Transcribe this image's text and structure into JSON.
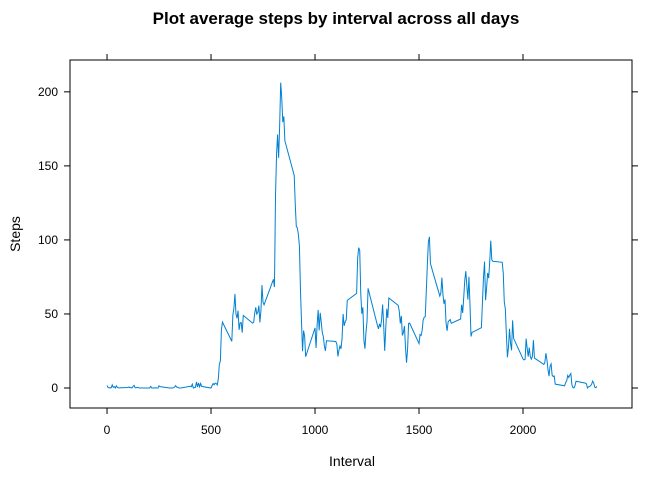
{
  "chart_data": {
    "type": "line",
    "title": "Plot average steps by interval across all days",
    "xlabel": "Interval",
    "ylabel": "Steps",
    "xlim": [
      -178,
      2524
    ],
    "ylim": [
      -13.5,
      221.5
    ],
    "xticks": [
      0,
      500,
      1000,
      1500,
      2000
    ],
    "yticks": [
      0,
      50,
      100,
      150,
      200
    ],
    "series": [
      {
        "color": "#0080d0",
        "x": [
          0,
          5,
          10,
          15,
          20,
          25,
          30,
          35,
          40,
          45,
          50,
          55,
          100,
          105,
          110,
          115,
          120,
          125,
          130,
          135,
          140,
          145,
          150,
          155,
          200,
          205,
          210,
          215,
          220,
          225,
          230,
          235,
          240,
          245,
          250,
          255,
          300,
          305,
          310,
          315,
          320,
          325,
          330,
          335,
          340,
          345,
          350,
          355,
          400,
          405,
          410,
          415,
          420,
          425,
          430,
          435,
          440,
          445,
          450,
          455,
          500,
          505,
          510,
          515,
          520,
          525,
          530,
          535,
          540,
          545,
          550,
          555,
          600,
          605,
          610,
          615,
          620,
          625,
          630,
          635,
          640,
          645,
          650,
          655,
          700,
          705,
          710,
          715,
          720,
          725,
          730,
          735,
          740,
          745,
          750,
          755,
          800,
          805,
          810,
          815,
          820,
          825,
          830,
          835,
          840,
          845,
          850,
          855,
          900,
          905,
          910,
          915,
          920,
          925,
          930,
          935,
          940,
          945,
          950,
          955,
          1000,
          1005,
          1010,
          1015,
          1020,
          1025,
          1030,
          1035,
          1040,
          1045,
          1050,
          1055,
          1100,
          1105,
          1110,
          1115,
          1120,
          1125,
          1130,
          1135,
          1140,
          1145,
          1150,
          1155,
          1200,
          1205,
          1210,
          1215,
          1220,
          1225,
          1230,
          1235,
          1240,
          1245,
          1250,
          1255,
          1300,
          1305,
          1310,
          1315,
          1320,
          1325,
          1330,
          1335,
          1340,
          1345,
          1350,
          1355,
          1400,
          1405,
          1410,
          1415,
          1420,
          1425,
          1430,
          1435,
          1440,
          1445,
          1450,
          1455,
          1500,
          1505,
          1510,
          1515,
          1520,
          1525,
          1530,
          1535,
          1540,
          1545,
          1550,
          1555,
          1600,
          1605,
          1610,
          1615,
          1620,
          1625,
          1630,
          1635,
          1640,
          1645,
          1650,
          1655,
          1700,
          1705,
          1710,
          1715,
          1720,
          1725,
          1730,
          1735,
          1740,
          1745,
          1750,
          1755,
          1800,
          1805,
          1810,
          1815,
          1820,
          1825,
          1830,
          1835,
          1840,
          1845,
          1850,
          1855,
          1900,
          1905,
          1910,
          1915,
          1920,
          1925,
          1930,
          1935,
          1940,
          1945,
          1950,
          1955,
          2000,
          2005,
          2010,
          2015,
          2020,
          2025,
          2030,
          2035,
          2040,
          2045,
          2050,
          2055,
          2100,
          2105,
          2110,
          2115,
          2120,
          2125,
          2130,
          2135,
          2140,
          2145,
          2150,
          2155,
          2200,
          2205,
          2210,
          2215,
          2220,
          2225,
          2230,
          2235,
          2240,
          2245,
          2250,
          2255,
          2300,
          2305,
          2310,
          2315,
          2320,
          2325,
          2330,
          2335,
          2340,
          2345,
          2350,
          2355
        ],
        "values": [
          1.7,
          0.3,
          0.1,
          0.2,
          0.1,
          2.1,
          0.5,
          0.9,
          0,
          1.5,
          0.3,
          0.1,
          0.3,
          0.7,
          0.2,
          0.3,
          0,
          1.1,
          1.8,
          0.2,
          0.2,
          0.4,
          0.3,
          0,
          0,
          0,
          1.1,
          0,
          0,
          0.1,
          0,
          0.2,
          0,
          0,
          1.5,
          0.9,
          0,
          0,
          0,
          0,
          0.2,
          0.6,
          1.6,
          0.6,
          0.5,
          0.1,
          0,
          0,
          1.2,
          0.9,
          2.6,
          0,
          0.3,
          0.4,
          4.1,
          0.7,
          3.5,
          0.8,
          3.1,
          1.1,
          0,
          1.6,
          3,
          2.2,
          3.3,
          3,
          2.1,
          6.1,
          16,
          18.3,
          39.5,
          44.5,
          31.5,
          49.3,
          53.8,
          63.5,
          50,
          47.1,
          52.2,
          39.3,
          44,
          44.2,
          37.4,
          49,
          43.8,
          44.4,
          50.5,
          54.5,
          49.9,
          51,
          55.7,
          44.3,
          52.3,
          69.5,
          57.8,
          56.2,
          73.4,
          68.2,
          129.4,
          157.5,
          171.2,
          155.4,
          177.3,
          206.2,
          195.9,
          179.6,
          183.4,
          167,
          143.5,
          124,
          109.1,
          108.1,
          103.7,
          95.9,
          66.2,
          45.2,
          24.8,
          38.8,
          35,
          21.1,
          40.6,
          27,
          42.4,
          52.7,
          38.9,
          50.8,
          44.3,
          37.4,
          34.7,
          28.3,
          25.1,
          31.9,
          31.4,
          29.7,
          21.3,
          25.5,
          28.4,
          26.5,
          33.4,
          50,
          42,
          44.6,
          46,
          59.2,
          63.9,
          87.7,
          94.8,
          92.8,
          63.4,
          50.2,
          54.5,
          32.4,
          26.5,
          37.7,
          45.1,
          67.3,
          42.3,
          39.9,
          43.3,
          41,
          46.2,
          56.4,
          42.8,
          25.1,
          40,
          53.5,
          47.3,
          60.8,
          55.8,
          52,
          43.6,
          48.7,
          35.5,
          37.5,
          41.8,
          27.5,
          17.1,
          26.1,
          43.6,
          43.8,
          30,
          36.1,
          35.5,
          38.8,
          46,
          47.8,
          48.1,
          65.3,
          82.9,
          98.7,
          102.1,
          84,
          62.1,
          64.1,
          74.5,
          63.2,
          56.9,
          59.8,
          43.9,
          38.6,
          44.7,
          45.5,
          46.2,
          43.7,
          46.6,
          56.3,
          50.7,
          61.2,
          72.7,
          78.9,
          68.9,
          59.7,
          75.1,
          56.5,
          34.8,
          37.5,
          40.7,
          58,
          74.7,
          85.3,
          59.3,
          67.8,
          77.7,
          74.2,
          85.3,
          99.5,
          86.6,
          85.6,
          84.9,
          77.8,
          58,
          53.4,
          36.3,
          20.7,
          27.4,
          40,
          30.2,
          25.5,
          45.7,
          33.5,
          19.6,
          19,
          19.3,
          33.3,
          26.8,
          21.2,
          27.3,
          21.3,
          19.5,
          21.3,
          32.3,
          20.2,
          15.9,
          17.2,
          23.5,
          19.2,
          12.5,
          8,
          14.7,
          16.3,
          8.7,
          7.8,
          8.1,
          2.6,
          1.5,
          3.7,
          4.8,
          8.5,
          7.1,
          8.7,
          9.8,
          2.2,
          0.3,
          0.1,
          1.6,
          4.6,
          3.3,
          2.8,
          0,
          0.8,
          1,
          1.6,
          2.6,
          4.7,
          3.3,
          0.6,
          0.2,
          1.1
        ]
      }
    ]
  }
}
